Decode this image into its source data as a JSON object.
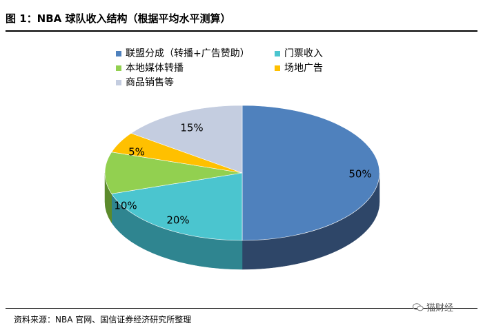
{
  "figure": {
    "title": "图 1：NBA 球队收入结构（根据平均水平测算）",
    "source": "资料来源：NBA 官网、国信证券经济研究所整理",
    "watermark": "猫财经",
    "watermark_icon": "wechat-icon"
  },
  "chart_data": {
    "type": "pie",
    "title": "",
    "three_d": true,
    "legend_position": "top",
    "slices": [
      {
        "label": "联盟分成（转播+广告赞助）",
        "value": 50,
        "display": "50%",
        "color": "#4f81bd",
        "side_color": "#2e4668"
      },
      {
        "label": "门票收入",
        "value": 20,
        "display": "20%",
        "color": "#4bc5cf",
        "side_color": "#2f8590"
      },
      {
        "label": "本地媒体转播",
        "value": 10,
        "display": "10%",
        "color": "#92d050",
        "side_color": "#5b8a2c"
      },
      {
        "label": "场地广告",
        "value": 5,
        "display": "5%",
        "color": "#ffc000",
        "side_color": "#b58900"
      },
      {
        "label": "商品销售等",
        "value": 15,
        "display": "15%",
        "color": "#c4cde0",
        "side_color": "#8a93a8"
      }
    ]
  }
}
